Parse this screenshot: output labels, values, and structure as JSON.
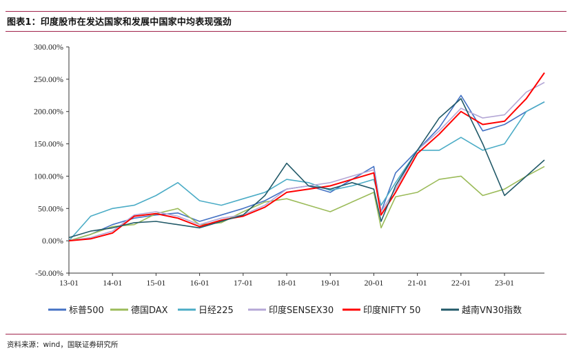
{
  "figure": {
    "title": "图表1：印度股市在发达国家和发展中国家中均表现强劲",
    "source": "资料来源：wind，国联证券研究所"
  },
  "chart_data": {
    "type": "line",
    "x_ticks": [
      "13-01",
      "14-01",
      "15-01",
      "16-01",
      "17-01",
      "18-01",
      "19-01",
      "20-01",
      "21-01",
      "22-01",
      "23-01"
    ],
    "x_range": [
      "2013-01",
      "2023-12"
    ],
    "y_ticks": [
      "300.00%",
      "250.00%",
      "200.00%",
      "150.00%",
      "100.00%",
      "50.00%",
      "0.00%",
      "-50.00%"
    ],
    "ylim": [
      -50,
      300
    ],
    "y_unit": "%",
    "grid": false,
    "legend_position": "bottom",
    "x": [
      "2013-01",
      "2013-07",
      "2014-01",
      "2014-07",
      "2015-01",
      "2015-07",
      "2016-01",
      "2016-07",
      "2017-01",
      "2017-07",
      "2018-01",
      "2018-07",
      "2019-01",
      "2019-07",
      "2020-01",
      "2020-03",
      "2020-07",
      "2021-01",
      "2021-07",
      "2022-01",
      "2022-07",
      "2023-01",
      "2023-07",
      "2023-12"
    ],
    "series": [
      {
        "name": "标普500",
        "color": "#4472c4",
        "values": [
          0,
          10,
          25,
          35,
          40,
          43,
          30,
          40,
          50,
          62,
          80,
          85,
          75,
          95,
          115,
          45,
          105,
          140,
          175,
          225,
          170,
          180,
          200,
          215
        ]
      },
      {
        "name": "德国DAX",
        "color": "#9bbb59",
        "values": [
          0,
          10,
          22,
          25,
          42,
          50,
          25,
          28,
          45,
          60,
          65,
          55,
          45,
          60,
          75,
          20,
          68,
          75,
          95,
          100,
          70,
          80,
          100,
          115
        ]
      },
      {
        "name": "日经225",
        "color": "#4bacc6",
        "values": [
          0,
          38,
          50,
          55,
          70,
          90,
          62,
          55,
          65,
          75,
          95,
          90,
          78,
          85,
          95,
          55,
          90,
          140,
          140,
          160,
          140,
          150,
          200,
          215
        ]
      },
      {
        "name": "印度SENSEX30",
        "color": "#b4a7d6",
        "values": [
          0,
          5,
          15,
          40,
          45,
          38,
          25,
          35,
          40,
          55,
          80,
          85,
          90,
          100,
          110,
          45,
          80,
          140,
          170,
          205,
          190,
          195,
          230,
          245
        ]
      },
      {
        "name": "印度NIFTY 50",
        "color": "#ff0000",
        "values": [
          0,
          3,
          12,
          38,
          42,
          35,
          22,
          32,
          38,
          52,
          75,
          80,
          85,
          95,
          105,
          40,
          75,
          135,
          165,
          200,
          180,
          185,
          220,
          260
        ]
      },
      {
        "name": "越南VN30指数",
        "color": "#215968",
        "values": [
          5,
          15,
          20,
          28,
          30,
          25,
          20,
          30,
          40,
          70,
          120,
          85,
          80,
          90,
          80,
          30,
          85,
          140,
          190,
          220,
          150,
          70,
          100,
          125
        ]
      }
    ]
  }
}
